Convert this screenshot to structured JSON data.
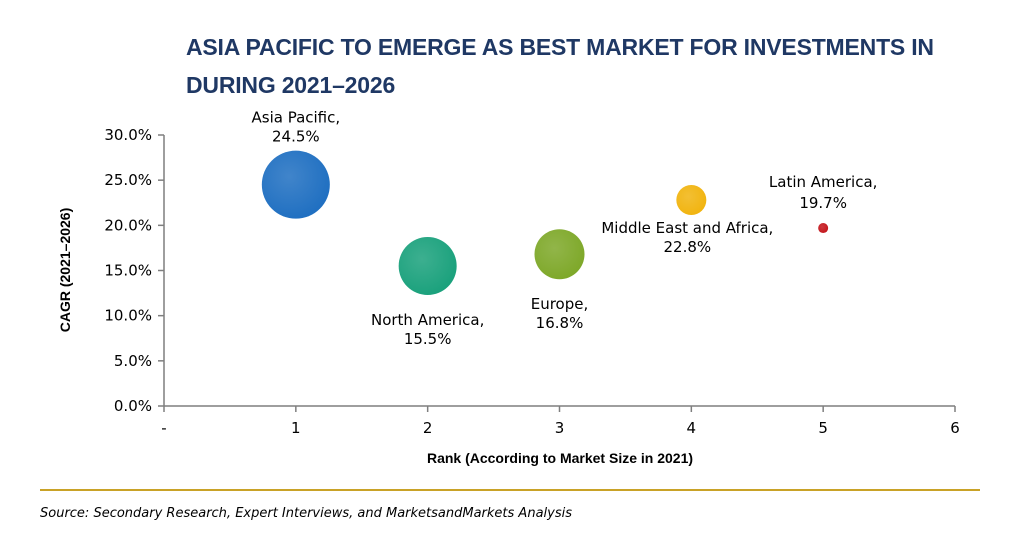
{
  "title": "ASIA PACIFIC TO EMERGE AS BEST MARKET FOR INVESTMENTS IN DURING 2021–2026",
  "source": "Source: Secondary Research, Expert Interviews, and MarketsandMarkets Analysis",
  "colors": {
    "title": "#1f3864",
    "rule": "#c9a227"
  },
  "chart_data": {
    "type": "scatter",
    "variant": "bubble",
    "title": "ASIA PACIFIC TO EMERGE AS BEST MARKET FOR INVESTMENTS IN DURING 2021–2026",
    "xlabel": "Rank (According to Market Size in 2021)",
    "ylabel": "CAGR (2021–2026)",
    "xlim": [
      0,
      6
    ],
    "ylim": [
      0,
      30
    ],
    "x_ticks": [
      "-",
      "1",
      "2",
      "3",
      "4",
      "5",
      "6"
    ],
    "y_ticks": [
      "0.0%",
      "5.0%",
      "10.0%",
      "15.0%",
      "20.0%",
      "25.0%",
      "30.0%"
    ],
    "grid": false,
    "legend": "none",
    "points": [
      {
        "region": "Asia Pacific,",
        "value_label": "24.5%",
        "x": 1,
        "y": 24.5,
        "size_rank": 1,
        "color": "#1f6fc1",
        "label_pos": "above"
      },
      {
        "region": "North America,",
        "value_label": "15.5%",
        "x": 2,
        "y": 15.5,
        "size_rank": 2,
        "color": "#1aa17c",
        "label_pos": "below"
      },
      {
        "region": "Europe,",
        "value_label": "16.8%",
        "x": 3,
        "y": 16.8,
        "size_rank": 3,
        "color": "#7ea829",
        "label_pos": "below"
      },
      {
        "region": "Middle East and Africa,",
        "value_label": "22.8%",
        "x": 4,
        "y": 22.8,
        "size_rank": 4,
        "color": "#f1b40f",
        "label_pos": "below-left"
      },
      {
        "region": "Latin America,",
        "value_label": "19.7%",
        "x": 5,
        "y": 19.7,
        "size_rank": 5,
        "color": "#c4161c",
        "label_pos": "above"
      }
    ]
  }
}
